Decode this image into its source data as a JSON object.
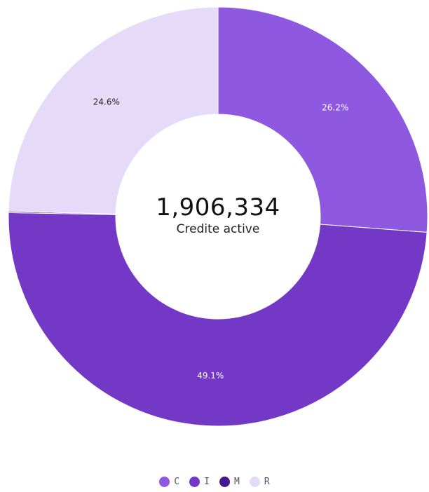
{
  "chart_data": {
    "type": "pie",
    "subtype": "donut",
    "center_value": "1,906,334",
    "center_label": "Credite active",
    "slices": [
      {
        "category": "C",
        "value": 26.2,
        "label": "26.2%",
        "color": "#8e58e0",
        "label_color": "#ffffff"
      },
      {
        "category": "I",
        "value": 49.1,
        "label": "49.1%",
        "color": "#7339c6",
        "label_color": "#ffffff"
      },
      {
        "category": "M",
        "value": 0.1,
        "label": "",
        "color": "#46188f",
        "label_color": "#ffffff"
      },
      {
        "category": "R",
        "value": 24.6,
        "label": "24.6%",
        "color": "#e6daf9",
        "label_color": "#222222"
      }
    ],
    "legend": {
      "position": "bottom",
      "items": [
        {
          "name": "C",
          "color": "#8e58e0"
        },
        {
          "name": "I",
          "color": "#7339c6"
        },
        {
          "name": "M",
          "color": "#46188f"
        },
        {
          "name": "R",
          "color": "#e6daf9"
        }
      ]
    },
    "start_angle": "top",
    "direction": "clockwise"
  }
}
